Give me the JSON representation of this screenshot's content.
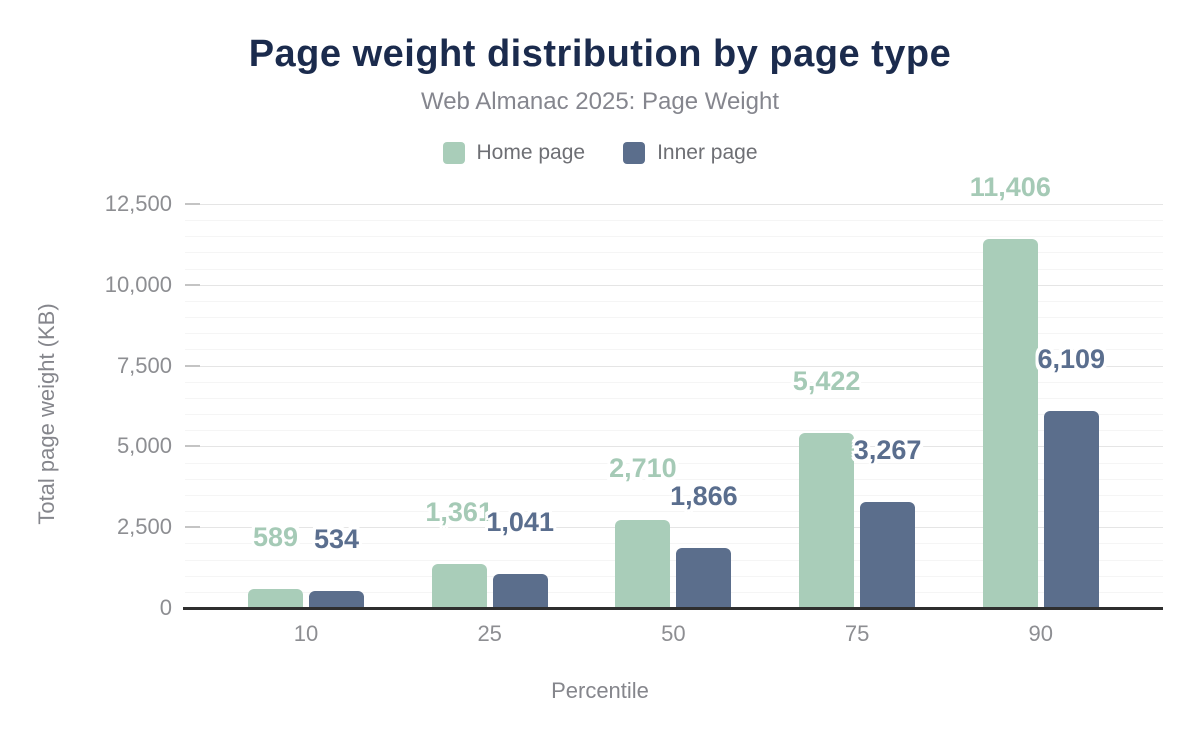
{
  "chart_data": {
    "type": "bar",
    "title": "Page weight distribution by page type",
    "subtitle": "Web Almanac 2025: Page Weight",
    "xlabel": "Percentile",
    "ylabel": "Total page weight (KB)",
    "categories": [
      "10",
      "25",
      "50",
      "75",
      "90"
    ],
    "series": [
      {
        "name": "Home page",
        "color": "#a9cdb9",
        "label_color": "#a5cab6",
        "values": [
          589,
          1361,
          2710,
          5422,
          11406
        ]
      },
      {
        "name": "Inner page",
        "color": "#5b6e8c",
        "label_color": "#5a6e8e",
        "values": [
          534,
          1041,
          1866,
          3267,
          6109
        ]
      }
    ],
    "ylim": [
      0,
      12500
    ],
    "yticks": [
      0,
      2500,
      5000,
      7500,
      10000,
      12500
    ],
    "ytick_labels": [
      "0",
      "2,500",
      "5,000",
      "7,500",
      "10,000",
      "12,500"
    ],
    "minor_grid_step": 500,
    "grid": "on",
    "legend_position": "top",
    "value_labels_shown": true
  },
  "colors": {
    "title": "#1b2b4d",
    "subtitle": "#85868e",
    "legend_text": "#6e6f74",
    "axis_text": "#8d8e92",
    "axis_title_text": "#85868c",
    "axis_line": "#2f2f2f",
    "grid_major": "#e5e5e5",
    "grid_minor": "#f5f5f5",
    "tick_mark": "#c4c4c4",
    "background": "#ffffff"
  }
}
